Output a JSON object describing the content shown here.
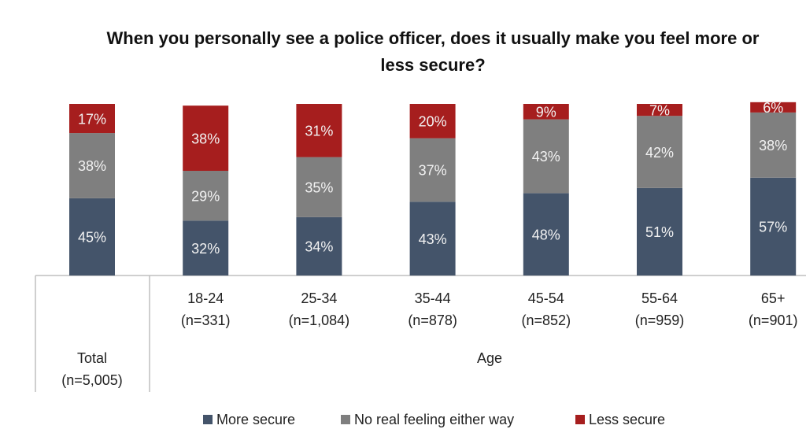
{
  "chart_data": {
    "type": "stacked-bar",
    "title": "When you personally see a police officer, does it usually make you feel more or less secure?",
    "categories": [
      "Total",
      "18-24",
      "25-34",
      "35-44",
      "45-54",
      "55-64",
      "65+"
    ],
    "sample_sizes": [
      "(n=5,005)",
      "(n=331)",
      "(n=1,084)",
      "(n=878)",
      "(n=852)",
      "(n=959)",
      "(n=901)"
    ],
    "group_label": "Age",
    "ylim": [
      0,
      100
    ],
    "series": [
      {
        "name": "More secure",
        "color": "#44546a",
        "values": [
          45,
          32,
          34,
          43,
          48,
          51,
          57
        ],
        "value_labels": [
          "45%",
          "32%",
          "34%",
          "43%",
          "48%",
          "51%",
          "57%"
        ]
      },
      {
        "name": "No real feeling either way",
        "color": "#7f7f7f",
        "values": [
          38,
          29,
          35,
          37,
          43,
          42,
          38
        ],
        "value_labels": [
          "38%",
          "29%",
          "35%",
          "37%",
          "43%",
          "42%",
          "38%"
        ]
      },
      {
        "name": "Less secure",
        "color": "#a61e1e",
        "values": [
          17,
          38,
          31,
          20,
          9,
          7,
          6
        ],
        "value_labels": [
          "17%",
          "38%",
          "31%",
          "20%",
          "9%",
          "7%",
          "6%"
        ]
      }
    ]
  }
}
